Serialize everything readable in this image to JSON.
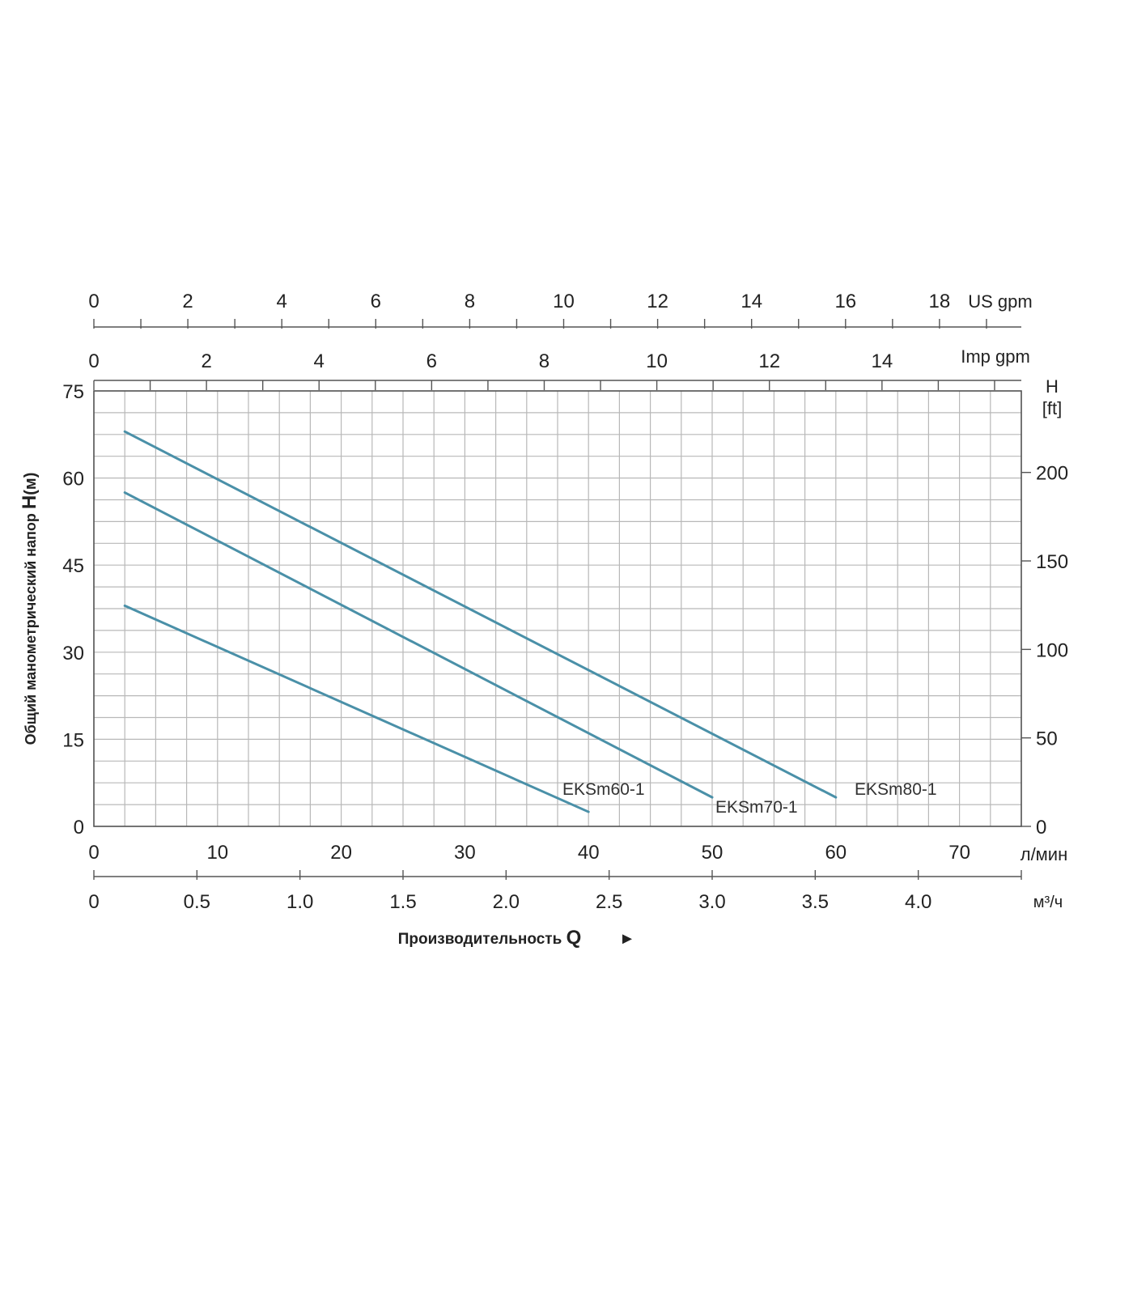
{
  "chart_data": {
    "type": "line",
    "x_axis_bottom": {
      "unit": "л/мин",
      "range": [
        0,
        75
      ],
      "ticks": [
        "0",
        "10",
        "20",
        "30",
        "40",
        "50",
        "60",
        "70"
      ]
    },
    "x_axis_bottom2": {
      "unit": "м³/ч",
      "range": [
        0,
        4.5
      ],
      "ticks": [
        "0",
        "0.5",
        "1.0",
        "1.5",
        "2.0",
        "2.5",
        "3.0",
        "3.5",
        "4.0"
      ]
    },
    "x_axis_top1": {
      "unit": "US gpm",
      "ticks": [
        "0",
        "2",
        "4",
        "6",
        "8",
        "10",
        "12",
        "14",
        "16",
        "18"
      ]
    },
    "x_axis_top2": {
      "unit": "Imp gpm",
      "ticks": [
        "0",
        "2",
        "4",
        "6",
        "8",
        "10",
        "12",
        "14"
      ]
    },
    "y_axis_left": {
      "range": [
        0,
        75
      ],
      "ticks": [
        "0",
        "15",
        "30",
        "45",
        "60",
        "75"
      ],
      "label_prefix": "Общий манометрический напор",
      "label_symbol": "H",
      "label_unit": "(м)"
    },
    "y_axis_right": {
      "title": "H",
      "unit": "[ft]",
      "ticks": [
        "0",
        "50",
        "100",
        "150",
        "200"
      ]
    },
    "xlabel_text": "Производительность",
    "xlabel_symbol": "Q",
    "xlabel_arrow": "►",
    "grid": true,
    "line_color": "#4a90a8",
    "series": [
      {
        "name": "EKSm60-1",
        "x": [
          2.5,
          40
        ],
        "y": [
          38,
          2.5
        ]
      },
      {
        "name": "EKSm70-1",
        "x": [
          2.5,
          50
        ],
        "y": [
          57.5,
          5
        ]
      },
      {
        "name": "EKSm80-1",
        "x": [
          2.5,
          60
        ],
        "y": [
          68,
          5
        ]
      }
    ]
  }
}
